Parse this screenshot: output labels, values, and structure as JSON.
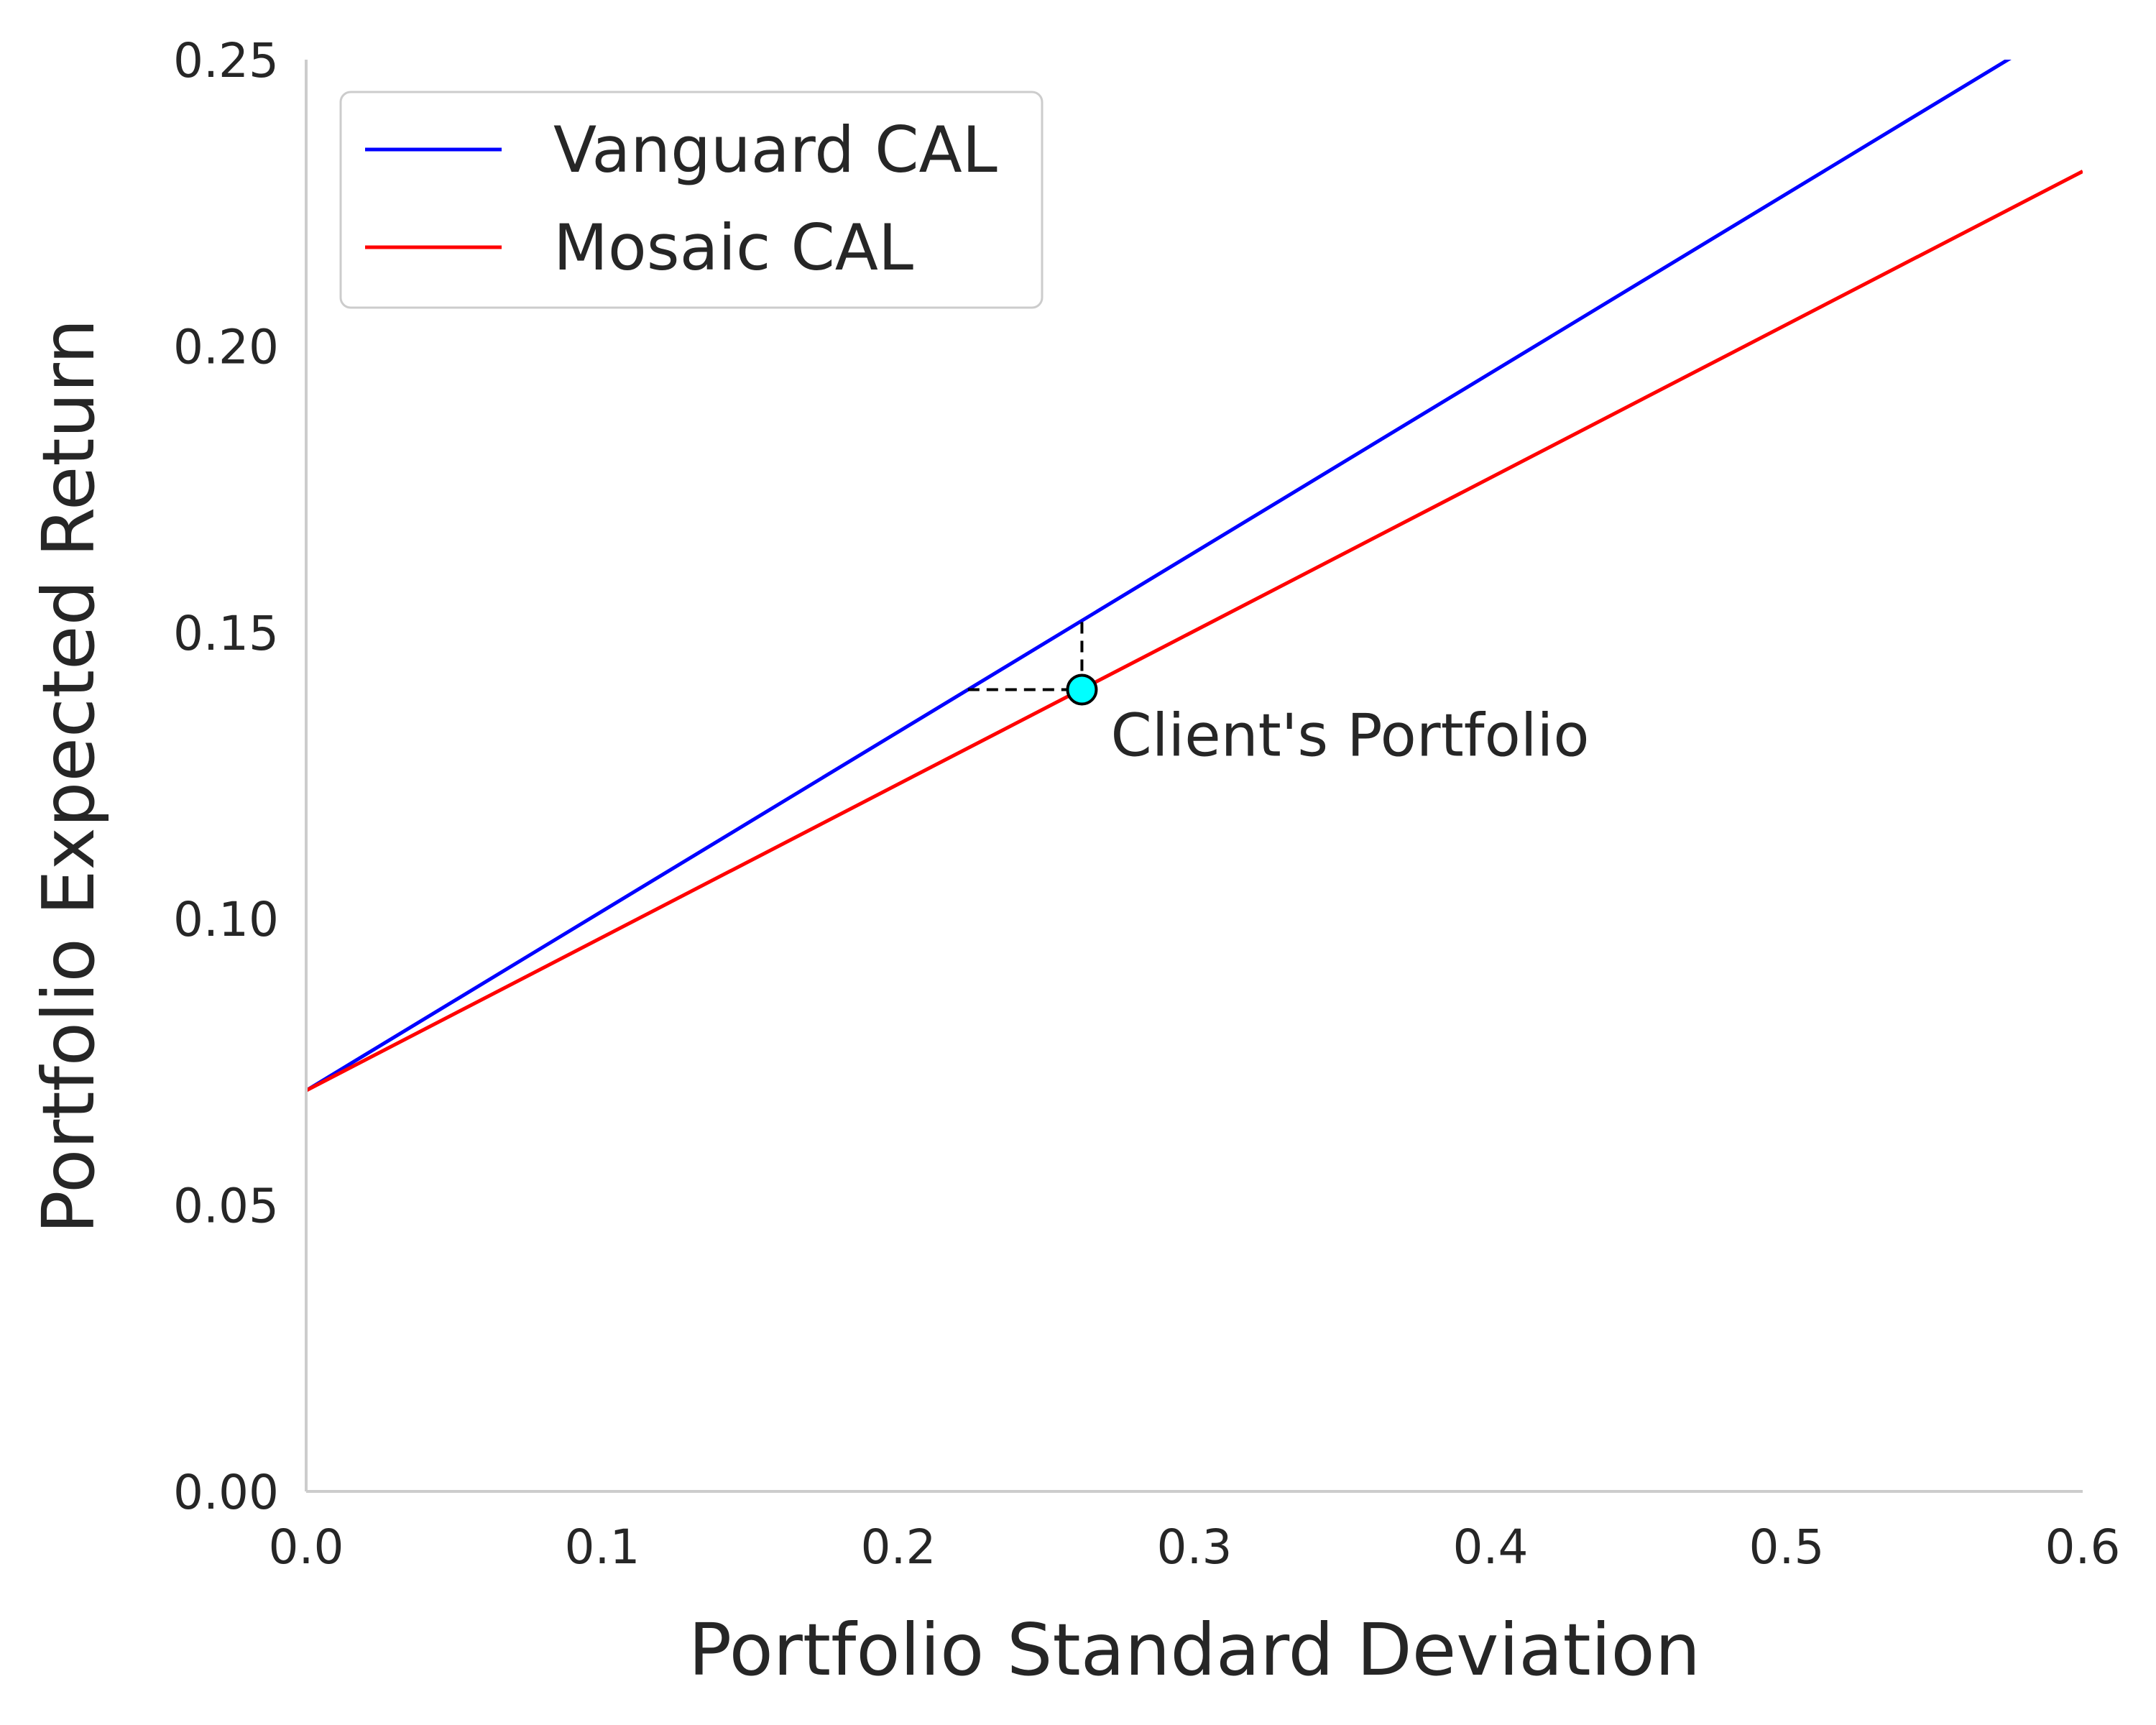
{
  "chart_data": {
    "type": "line",
    "title": "",
    "xlabel": "Portfolio Standard Deviation",
    "ylabel": "Portfolio Expected Return",
    "xlim": [
      0.0,
      0.6
    ],
    "ylim": [
      0.0,
      0.25
    ],
    "x_ticks": [
      "0.0",
      "0.1",
      "0.2",
      "0.3",
      "0.4",
      "0.5",
      "0.6"
    ],
    "y_ticks": [
      "0.00",
      "0.05",
      "0.10",
      "0.15",
      "0.20",
      "0.25"
    ],
    "grid": false,
    "legend_position": "top-left",
    "series": [
      {
        "name": "Vanguard CAL",
        "color": "#0000ff",
        "x": [
          0.0,
          0.6
        ],
        "y": [
          0.07,
          0.2579
        ]
      },
      {
        "name": "Mosaic CAL",
        "color": "#ff0000",
        "x": [
          0.0,
          0.6
        ],
        "y": [
          0.07,
          0.2305
        ]
      }
    ],
    "annotations": [
      {
        "text": "Client's Portfolio",
        "point": {
          "x": 0.262,
          "y": 0.14,
          "color": "#00ffff"
        },
        "dashed_horizontal": {
          "x_from": 0.2235,
          "x_to": 0.262,
          "y": 0.14
        },
        "dashed_vertical": {
          "x": 0.262,
          "y_from": 0.14,
          "y_to": 0.152
        }
      }
    ]
  }
}
